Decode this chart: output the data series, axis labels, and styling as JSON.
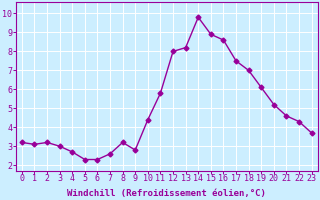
{
  "x": [
    0,
    1,
    2,
    3,
    4,
    5,
    6,
    7,
    8,
    9,
    10,
    11,
    12,
    13,
    14,
    15,
    16,
    17,
    18,
    19,
    20,
    21,
    22,
    23
  ],
  "y": [
    3.2,
    3.1,
    3.2,
    3.0,
    2.7,
    2.3,
    2.3,
    2.6,
    3.2,
    2.8,
    4.4,
    5.8,
    8.0,
    8.2,
    9.8,
    8.9,
    8.6,
    7.5,
    7.0,
    6.1,
    5.2,
    4.6,
    4.3,
    3.7
  ],
  "line_color": "#990099",
  "marker": "D",
  "marker_size": 2.5,
  "linewidth": 1.0,
  "xlabel": "Windchill (Refroidissement éolien,°C)",
  "xlabel_fontsize": 6.5,
  "xlabel_color": "#990099",
  "ylabel_ticks": [
    2,
    3,
    4,
    5,
    6,
    7,
    8,
    9,
    10
  ],
  "xtick_labels": [
    "0",
    "1",
    "2",
    "3",
    "4",
    "5",
    "6",
    "7",
    "8",
    "9",
    "10",
    "11",
    "12",
    "13",
    "14",
    "15",
    "16",
    "17",
    "18",
    "19",
    "20",
    "21",
    "22",
    "23"
  ],
  "ylim": [
    1.7,
    10.6
  ],
  "xlim": [
    -0.5,
    23.5
  ],
  "background_color": "#cceeff",
  "grid_color": "#ffffff",
  "tick_color": "#990099",
  "tick_fontsize": 6,
  "ylabel_fontsize": 6
}
